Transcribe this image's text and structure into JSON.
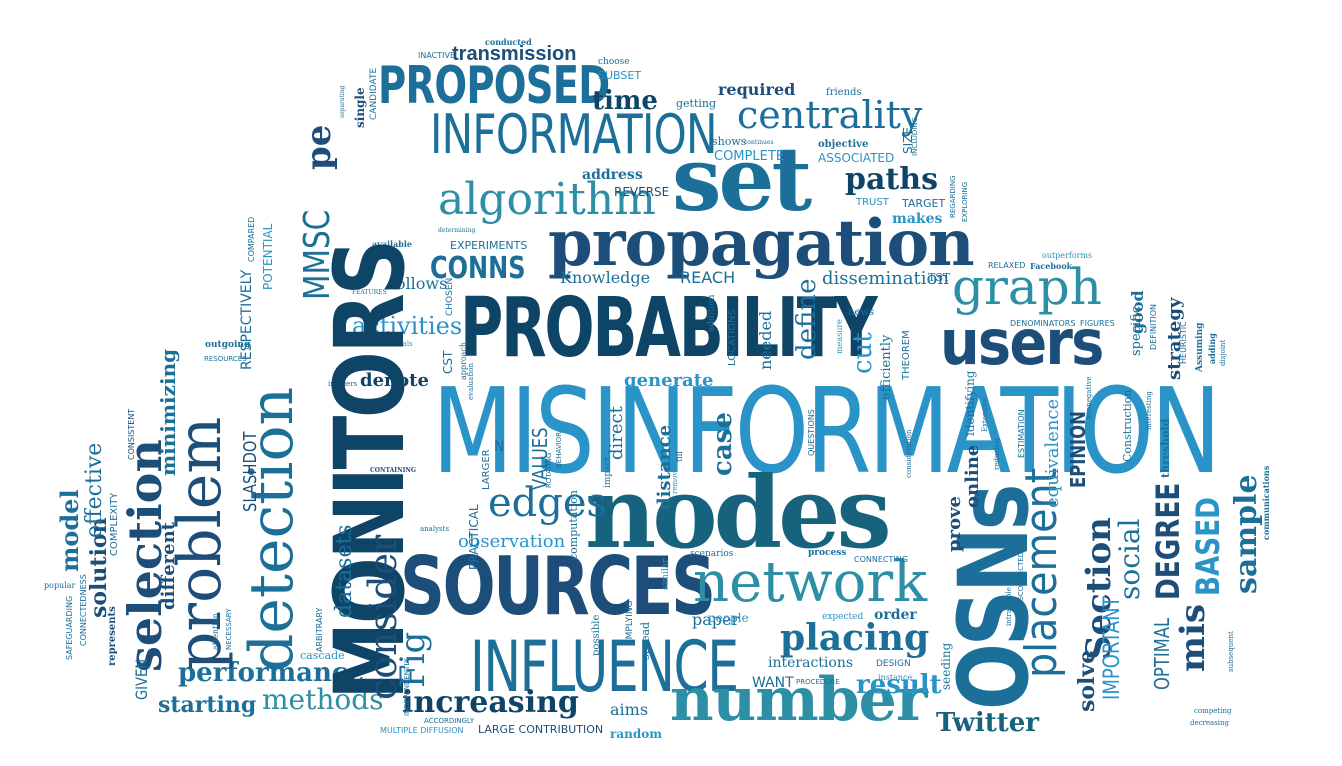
{
  "cloud": {
    "misinformation": "MISINFORMATION",
    "probability": "PROBABILITY",
    "monitors": "MONITORS",
    "nodes": "nodes",
    "propagation": "propagation",
    "detection": "detection",
    "sources": "SOURCES",
    "influence": "INFLUENCE",
    "network": "network",
    "number": "number",
    "osns": "OSNs",
    "problem": "problem",
    "selection": "selection",
    "users": "users",
    "set": "set",
    "information": "INFORMATION",
    "proposed": "PROPOSED",
    "algorithm": "algorithm",
    "centrality": "centrality",
    "graph": "graph",
    "placing": "placing",
    "placement": "placement",
    "time": "time",
    "paths": "paths",
    "transmission": "transmission",
    "edges": "edges",
    "consider": "consider",
    "performance": "performance",
    "increasing": "increasing",
    "result": "result",
    "twitter": "Twitter",
    "methods": "methods",
    "starting": "starting",
    "activities": "activities",
    "conns": "CONNS",
    "mmsc": "MMSC",
    "pe": "pe",
    "degree": "DEGREE",
    "based": "BASED",
    "section": "Section",
    "social": "social",
    "sample": "sample",
    "important": "IMPORTANT",
    "optimal": "OPTIMAL",
    "mis": "mis",
    "solve": "solve",
    "model": "model",
    "solution": "solution",
    "effective": "effective",
    "minimizing": "minimizing",
    "different": "different",
    "slashdot": "SLASHDOT",
    "given": "GIVEN",
    "complexity": "COMPLEXITY",
    "fig": "Fig",
    "datasets": "datasets",
    "observation": "observation",
    "values": "VALUES",
    "direct": "direct",
    "distance": "distance",
    "case": "case",
    "define": "define",
    "cut": "cut",
    "epinion": "EPINION",
    "equivalence": "equivalence",
    "prove": "prove",
    "online": "online",
    "strategy": "strategy",
    "good": "good",
    "denote": "denote",
    "generate": "generate",
    "follows": "follows",
    "knowledge": "Knowledge",
    "reach": "REACH",
    "dissemination": "dissemination",
    "needed": "needed",
    "experiments": "EXPERIMENTS",
    "address": "address",
    "reverse": "REVERSE",
    "required": "required",
    "complete": "COMPLETE",
    "associated": "ASSOCIATED",
    "makes": "makes",
    "target": "TARGET",
    "trust": "TRUST",
    "size": "SIZE",
    "paper": "paper",
    "people": "people",
    "order": "order",
    "interactions": "interactions",
    "want": "WANT",
    "aims": "aims",
    "random": "random",
    "contribution": "LARGE CONTRIBUTION",
    "multiple": "MULTIPLE DIFFUSION",
    "respectively": "RESPECTIVELY",
    "potential": "POTENTIAL",
    "compared": "COMPARED",
    "subset": "SUBSET",
    "getting": "getting",
    "shows": "shows",
    "objective": "objective",
    "friends": "friends",
    "single": "single",
    "candidate": "CANDIDATE",
    "inactive": "INACTIVE",
    "conducted": "conducted",
    "choose": "choose",
    "available": "available",
    "resources": "RESOURCES",
    "outgoing": "outgoing",
    "consistent": "CONSISTENT",
    "represents": "represents",
    "popular": "popular",
    "connectedness": "CONNECTEDNESS",
    "safeguarding": "SAFEGUARDING",
    "cascade": "cascade",
    "attention": "attention",
    "necessary": "NECESSARY",
    "arbitrary": "ARBITRARY",
    "practical": "PRACTICAL",
    "larger": "LARGER",
    "computation": "computation",
    "possible": "possible",
    "implying": "IMPLYING",
    "spread": "spread",
    "impact": "impact",
    "similar": "similar",
    "scenarios": "scenarios",
    "process": "process",
    "connecting": "CONNECTING",
    "expected": "expected",
    "design": "DESIGN",
    "procedure": "PROCEDURE",
    "seeding": "seeding",
    "instance": "instance",
    "decreasing": "decreasing",
    "competing": "competing",
    "subsequent": "subsequent",
    "communications": "communications",
    "threshold": "threshold",
    "construction": "Construction",
    "estimation": "ESTIMATION",
    "identifying": "identifying",
    "efficiently": "efficiently",
    "theorem": "THEOREM",
    "measure": "measure",
    "news": "news",
    "locations": "LOCATIONS",
    "addition": "addition",
    "approach": "approach",
    "chosen": "CHOSEN",
    "features": "FEATURES",
    "cst": "CST",
    "questions": "QUESTIONS",
    "relaxed": "RELAXED",
    "facebook": "Facebook",
    "outperforms": "outperforms",
    "denominators": "DENOMINATORS",
    "figures": "FIGURES",
    "specific": "specific",
    "definition": "DEFINITION",
    "heuristic": "HEURISTIC",
    "assuming": "Assuming",
    "adding": "adding",
    "tst": "TST",
    "regarding": "REGARDING",
    "exploring": "EXPLORING",
    "including": "INCLUDING",
    "individuals": "individuals",
    "integers": "integers",
    "evaluation": "evaluation",
    "n": "N",
    "rotating": "ROTATING",
    "behavior": "BEHAVIOR",
    "removal": "removal",
    "till": "till",
    "containing": "CONTAINING",
    "analysts": "analysts",
    "independently": "INDEPENDENTLY",
    "accordingly": "ACCORDINGLY",
    "extensive": "Extensive",
    "reducing": "reducing",
    "disconnected": "DISCONNECTED",
    "intractable": "intractable",
    "consideration": "consideration",
    "interesting": "interesting",
    "nonnegative": "nonnegative",
    "determining": "determining",
    "continues": "continues",
    "separating": "separating",
    "disjoint": "disjoint"
  }
}
